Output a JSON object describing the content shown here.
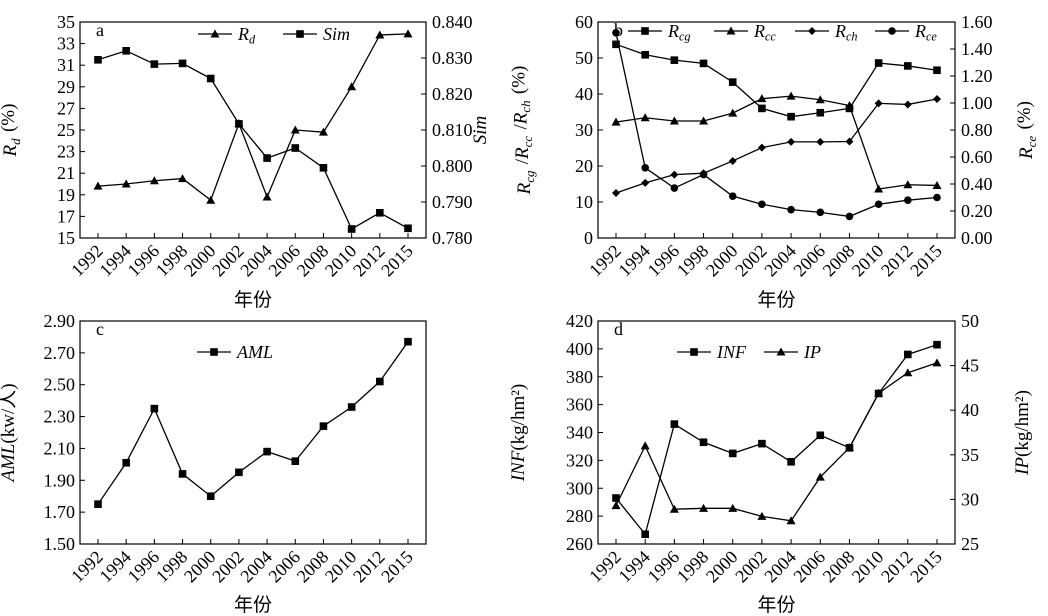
{
  "chart_data": [
    {
      "panel_label": "a",
      "type": "line",
      "x": [
        "1992",
        "1994",
        "1996",
        "1998",
        "2000",
        "2002",
        "2004",
        "2006",
        "2008",
        "2010",
        "2012",
        "2015"
      ],
      "xlabel": "年份",
      "ylabel_left": "Rd (%)",
      "ylabel_right": "Sim",
      "ylim_left": [
        15,
        35
      ],
      "yticks_left": [
        "15",
        "17",
        "19",
        "21",
        "23",
        "25",
        "27",
        "29",
        "31",
        "33",
        "35"
      ],
      "ylim_right": [
        0.78,
        0.84
      ],
      "yticks_right": [
        "0.780",
        "0.790",
        "0.800",
        "0.810",
        "0.820",
        "0.830",
        "0.840"
      ],
      "grid": false,
      "legend_position": "top-right",
      "series": [
        {
          "name": "Rd",
          "axis": "left",
          "marker": "triangle",
          "values": [
            19.8,
            20.0,
            20.3,
            20.5,
            18.5,
            25.6,
            18.8,
            25.0,
            24.8,
            29.0,
            33.8,
            33.9
          ]
        },
        {
          "name": "Sim",
          "axis": "right",
          "marker": "square",
          "values": [
            0.8295,
            0.832,
            0.8283,
            0.8285,
            0.8243,
            0.8117,
            0.8022,
            0.805,
            0.7995,
            0.7825,
            0.787,
            0.7827
          ]
        }
      ]
    },
    {
      "panel_label": "b",
      "type": "line",
      "x": [
        "1992",
        "1994",
        "1996",
        "1998",
        "2000",
        "2002",
        "2004",
        "2006",
        "2008",
        "2010",
        "2012",
        "2015"
      ],
      "xlabel": "年份",
      "ylabel_left": "Rcg /Rcc /Rch (%)",
      "ylabel_right": "Rce (%)",
      "ylim_left": [
        0,
        60
      ],
      "yticks_left": [
        "0",
        "10",
        "20",
        "30",
        "40",
        "50",
        "60"
      ],
      "ylim_right": [
        0,
        1.6
      ],
      "yticks_right": [
        "0.00",
        "0.20",
        "0.40",
        "0.60",
        "0.80",
        "1.00",
        "1.20",
        "1.40",
        "1.60"
      ],
      "grid": false,
      "legend_position": "top",
      "series": [
        {
          "name": "Rcg",
          "axis": "left",
          "marker": "square",
          "values": [
            53.8,
            50.9,
            49.4,
            48.5,
            43.3,
            36.0,
            33.7,
            34.8,
            36.0,
            48.6,
            47.8,
            46.6
          ]
        },
        {
          "name": "Rcc",
          "axis": "left",
          "marker": "triangle",
          "values": [
            32.2,
            33.4,
            32.5,
            32.5,
            34.7,
            38.7,
            39.4,
            38.4,
            36.8,
            13.6,
            14.8,
            14.6
          ]
        },
        {
          "name": "Rch",
          "axis": "left",
          "marker": "diamond",
          "values": [
            12.5,
            15.3,
            17.6,
            18.0,
            21.4,
            25.1,
            26.7,
            26.7,
            26.8,
            37.4,
            37.1,
            38.6
          ]
        },
        {
          "name": "Rce",
          "axis": "right",
          "marker": "circle",
          "values": [
            1.52,
            0.52,
            0.37,
            0.47,
            0.31,
            0.25,
            0.21,
            0.19,
            0.16,
            0.25,
            0.28,
            0.3
          ]
        }
      ]
    },
    {
      "panel_label": "c",
      "type": "line",
      "x": [
        "1992",
        "1994",
        "1996",
        "1998",
        "2000",
        "2002",
        "2004",
        "2006",
        "2008",
        "2010",
        "2012",
        "2015"
      ],
      "xlabel": "年份",
      "ylabel_left": "AML(kw/人)",
      "ylim_left": [
        1.5,
        2.9
      ],
      "yticks_left": [
        "1.50",
        "1.70",
        "1.90",
        "2.10",
        "2.30",
        "2.50",
        "2.70",
        "2.90"
      ],
      "grid": false,
      "legend_position": "top-left",
      "series": [
        {
          "name": "AML",
          "axis": "left",
          "marker": "square",
          "values": [
            1.75,
            2.01,
            2.35,
            1.94,
            1.8,
            1.95,
            2.08,
            2.02,
            2.24,
            2.36,
            2.52,
            2.77
          ]
        }
      ]
    },
    {
      "panel_label": "d",
      "type": "line",
      "x": [
        "1992",
        "1994",
        "1996",
        "1998",
        "2000",
        "2002",
        "2004",
        "2006",
        "2008",
        "2010",
        "2012",
        "2015"
      ],
      "xlabel": "年份",
      "ylabel_left": "INF(kg/hm²)",
      "ylabel_right": "IP(kg/hm²)",
      "ylim_left": [
        260,
        420
      ],
      "yticks_left": [
        "260",
        "280",
        "300",
        "320",
        "340",
        "360",
        "380",
        "400",
        "420"
      ],
      "ylim_right": [
        25,
        50
      ],
      "yticks_right": [
        "25",
        "30",
        "35",
        "40",
        "45",
        "50"
      ],
      "grid": false,
      "legend_position": "top",
      "series": [
        {
          "name": "INF",
          "axis": "left",
          "marker": "square",
          "values": [
            293,
            267,
            346,
            333,
            325,
            332,
            319,
            338,
            329,
            368,
            396,
            403
          ]
        },
        {
          "name": "IP",
          "axis": "right",
          "marker": "triangle",
          "values": [
            29.3,
            36.0,
            28.9,
            29.0,
            29.0,
            28.1,
            27.6,
            32.5,
            35.8,
            41.9,
            44.2,
            45.3
          ]
        }
      ]
    }
  ]
}
